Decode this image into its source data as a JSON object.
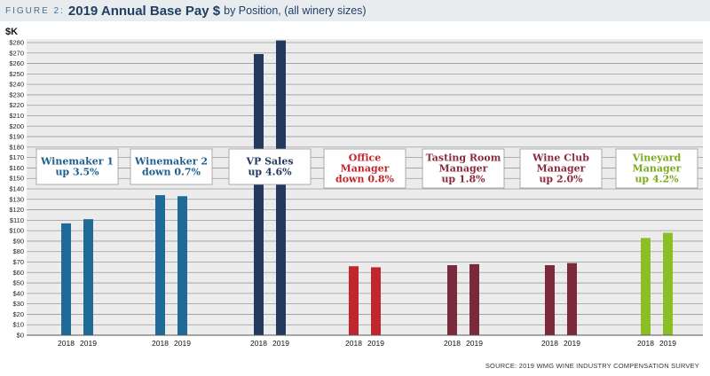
{
  "header": {
    "figure_label": "FIGURE 2:",
    "title": "2019 Annual Base Pay $",
    "subtitle": "by Position, (all winery sizes)"
  },
  "source": "SOURCE: 2019 WMG WINE INDUSTRY COMPENSATION SURVEY",
  "chart_data": {
    "type": "bar",
    "title": "2019 Annual Base Pay $ by Position, (all winery sizes)",
    "ylabel": "$K",
    "ylim": [
      0,
      280
    ],
    "ytick_step": 10,
    "grid": true,
    "x_tick_labels": [
      "2018",
      "2019"
    ],
    "categories": [
      "Winemaker 1",
      "Winemaker 2",
      "VP Sales",
      "Office Manager",
      "Tasting Room Manager",
      "Wine Club Manager",
      "Vineyard Manager"
    ],
    "groups": [
      {
        "label_lines": [
          "Winemaker 1",
          "up 3.5%"
        ],
        "values": [
          107,
          111
        ],
        "color": "#1f6a96",
        "text_color": "#1f5f8c"
      },
      {
        "label_lines": [
          "Winemaker 2",
          "down 0.7%"
        ],
        "values": [
          134,
          133
        ],
        "color": "#1f6a96",
        "text_color": "#1f5f8c"
      },
      {
        "label_lines": [
          "VP Sales",
          "up 4.6%"
        ],
        "values": [
          269,
          282
        ],
        "color": "#233a5e",
        "text_color": "#233a5e"
      },
      {
        "label_lines": [
          "Office",
          "Manager",
          "down 0.8%"
        ],
        "values": [
          66,
          65
        ],
        "color": "#c0272d",
        "text_color": "#c0272d"
      },
      {
        "label_lines": [
          "Tasting Room",
          "Manager",
          "up 1.8%"
        ],
        "values": [
          67,
          68
        ],
        "color": "#7a2a3a",
        "text_color": "#8a2b3d"
      },
      {
        "label_lines": [
          "Wine Club",
          "Manager",
          "up 2.0%"
        ],
        "values": [
          67,
          69
        ],
        "color": "#7a2a3a",
        "text_color": "#8a2b3d"
      },
      {
        "label_lines": [
          "Vineyard",
          "Manager",
          "up 4.2%"
        ],
        "values": [
          93,
          98
        ],
        "color": "#8cbf26",
        "text_color": "#7aab1c"
      }
    ]
  }
}
